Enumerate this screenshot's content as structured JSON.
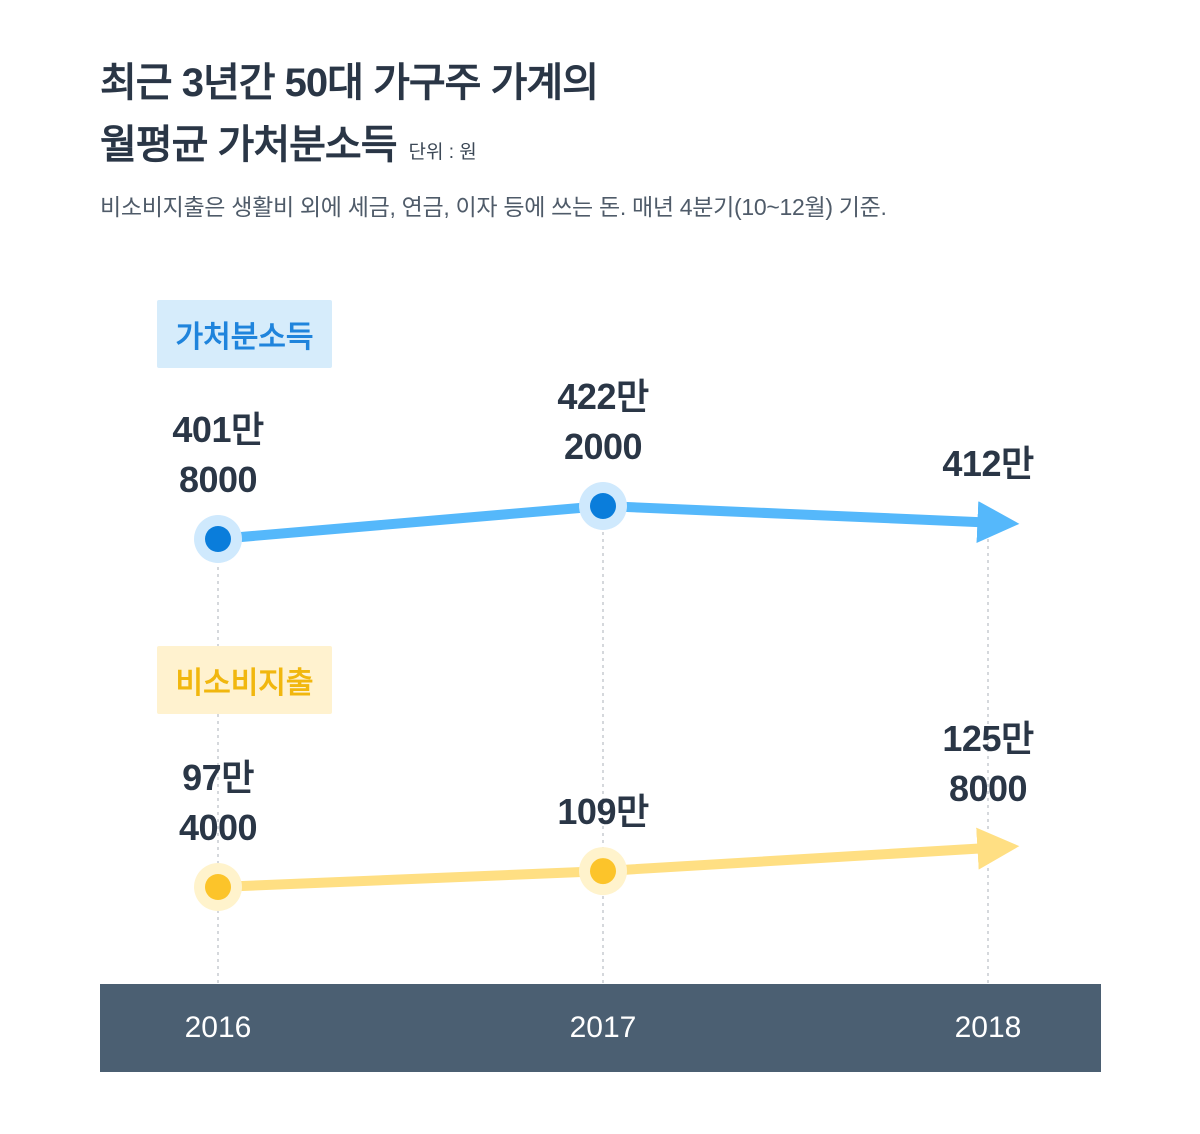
{
  "title": {
    "line1": "최근 3년간 50대 가구주 가계의",
    "line2": "월평균 가처분소득",
    "unit": "단위 : 원"
  },
  "subtitle": "비소비지출은 생활비 외에 세금, 연금, 이자 등에 쓰는 돈. 매년 4분기(10~12월) 기준.",
  "colors": {
    "income_line": "#55b8fb",
    "income_dot": "#0a7ddb",
    "income_halo": "#cfe9fd",
    "spend_line": "#ffdf83",
    "spend_dot": "#fcc42a",
    "spend_halo": "#fff3cc",
    "axis_band": "#4b5f72"
  },
  "chart_data": {
    "type": "line",
    "title": "최근 3년간 50대 가구주 가계의 월평균 가처분소득",
    "x": [
      "2016",
      "2017",
      "2018"
    ],
    "series": [
      {
        "name": "가처분소득",
        "values": [
          4018000,
          4222000,
          4120000
        ],
        "labels": [
          [
            "401만",
            "8000"
          ],
          [
            "422만",
            "2000"
          ],
          [
            "412만"
          ]
        ]
      },
      {
        "name": "비소비지출",
        "values": [
          974000,
          1090000,
          1258000
        ],
        "labels": [
          [
            "97만",
            "4000"
          ],
          [
            "109만"
          ],
          [
            "125만",
            "8000"
          ]
        ]
      }
    ],
    "unit": "원",
    "grid": false,
    "legend": "inline-left"
  }
}
